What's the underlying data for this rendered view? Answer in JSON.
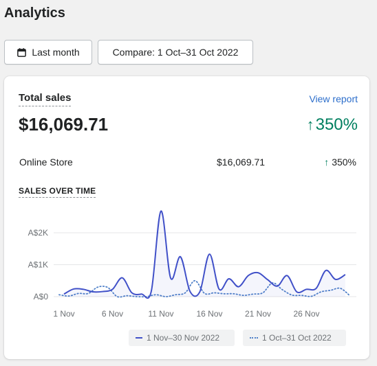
{
  "page": {
    "title": "Analytics"
  },
  "toolbar": {
    "date_label": "Last month",
    "compare_label": "Compare: 1 Oct–31 Oct 2022",
    "date_icon": "calendar-icon"
  },
  "card": {
    "title": "Total sales",
    "view_report": "View report",
    "total_value": "$16,069.71",
    "total_change": "350%",
    "change_icon": "arrow-up-icon",
    "breakdown": {
      "label": "Online Store",
      "value": "$16,069.71",
      "change": "350%"
    },
    "section_label": "SALES OVER TIME"
  },
  "colors": {
    "current_series": "#4050c8",
    "previous_series": "#4f80c8",
    "positive": "#007f5f",
    "link": "#2c6ecb"
  },
  "chart_data": {
    "type": "line",
    "x_tick_labels": [
      "1 Nov",
      "6 Nov",
      "11 Nov",
      "16 Nov",
      "21 Nov",
      "26 Nov"
    ],
    "y_tick_labels": [
      "A$0",
      "A$1K",
      "A$2K"
    ],
    "ylim": [
      0,
      2700
    ],
    "grid": true,
    "legend_position": "bottom-right",
    "series": [
      {
        "name": "1 Nov–30 Nov 2022",
        "style": "solid",
        "values": [
          80,
          240,
          230,
          150,
          160,
          230,
          590,
          120,
          80,
          170,
          2680,
          580,
          1250,
          160,
          150,
          1330,
          230,
          560,
          310,
          660,
          750,
          530,
          330,
          660,
          150,
          230,
          260,
          820,
          540,
          690
        ]
      },
      {
        "name": "1 Oct–31 Oct 2022",
        "style": "dotted",
        "values": [
          60,
          20,
          100,
          100,
          300,
          290,
          0,
          30,
          0,
          0,
          60,
          0,
          60,
          120,
          500,
          100,
          120,
          90,
          90,
          40,
          80,
          120,
          430,
          220,
          50,
          40,
          10,
          150,
          200,
          260,
          20
        ]
      }
    ]
  }
}
